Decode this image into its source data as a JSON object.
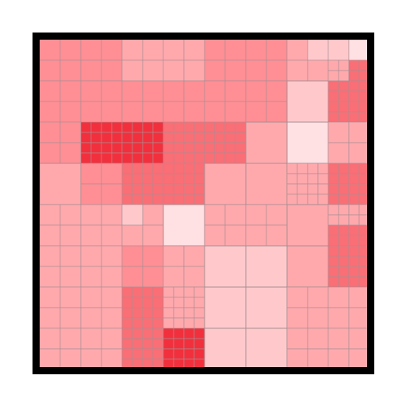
{
  "diagram": {
    "type": "quadtree-density-map",
    "max_depth": 5,
    "colors": {
      "frame": "#000000",
      "cell_border": "#a98e91",
      "shade_lightest": "#ffe0e3",
      "shade_light": "#ffc9cc",
      "shade_medium": "#ffa9ad",
      "shade_strong": "#ff8f95",
      "shade_darkest": "#f2303d"
    },
    "quadrant_order": [
      "top-left",
      "top-right",
      "bottom-left",
      "bottom-right"
    ],
    "tree": [
      [
        [
          [
            3,
            3,
            3,
            3
          ],
          [
            3,
            3,
            3,
            3
          ],
          [
            3,
            3,
            3,
            3
          ],
          [
            3,
            3,
            3,
            3
          ]
        ],
        [
          [
            2,
            2,
            2,
            2
          ],
          [
            2,
            2,
            2,
            2
          ],
          [
            3,
            3,
            3,
            3
          ],
          [
            3,
            3,
            3,
            3
          ]
        ],
        [
          [
            3,
            3,
            3,
            3
          ],
          [
            [
              4,
              4,
              4,
              4
            ],
            [
              4,
              4,
              4,
              4
            ],
            [
              4,
              4,
              4,
              4
            ],
            [
              4,
              4,
              4,
              4
            ]
          ],
          2,
          [
            3,
            3,
            3,
            3
          ]
        ],
        [
          [
            [
              4,
              4,
              4,
              4
            ],
            [
              4,
              4,
              4,
              4
            ],
            [
              4,
              4,
              4,
              4
            ],
            [
              4,
              4,
              4,
              4
            ]
          ],
          [
            [
              3,
              3,
              3,
              3
            ],
            [
              3,
              3,
              3,
              3
            ],
            [
              3,
              3,
              3,
              3
            ],
            [
              3,
              3,
              3,
              3
            ]
          ],
          [
            [
              3,
              3,
              3,
              3
            ],
            [
              3,
              3,
              3,
              3
            ],
            [
              3,
              3,
              3,
              3
            ],
            [
              3,
              3,
              3,
              3
            ]
          ],
          [
            [
              3,
              3,
              3,
              3
            ],
            [
              3,
              3,
              3,
              3
            ],
            [
              3,
              3,
              3,
              3
            ],
            [
              3,
              3,
              3,
              3
            ]
          ]
        ]
      ],
      [
        [
          [
            3,
            3,
            3,
            3
          ],
          [
            3,
            3,
            3,
            3
          ],
          [
            3,
            3,
            3,
            3
          ],
          [
            3,
            3,
            3,
            3
          ]
        ],
        [
          [
            2,
            1,
            2,
            2
          ],
          [
            1,
            0,
            [
              2,
              2,
              2,
              2
            ],
            [
              3,
              3,
              3,
              3
            ]
          ],
          1,
          [
            [
              3,
              3,
              3,
              3
            ],
            [
              3,
              3,
              3,
              3
            ],
            [
              3,
              3,
              3,
              3
            ],
            [
              3,
              3,
              3,
              3
            ]
          ]
        ],
        [
          [
            [
              3,
              3,
              3,
              3
            ],
            [
              3,
              3,
              3,
              3
            ],
            [
              3,
              3,
              3,
              3
            ],
            [
              3,
              3,
              3,
              3
            ]
          ],
          2,
          2,
          2
        ],
        [
          0,
          [
            2,
            2,
            2,
            2
          ],
          [
            [
              2,
              2,
              2,
              2
            ],
            [
              2,
              2,
              2,
              2
            ],
            [
              2,
              2,
              2,
              2
            ],
            [
              2,
              2,
              2,
              2
            ]
          ],
          [
            [
              3,
              3,
              3,
              3
            ],
            [
              3,
              3,
              3,
              3
            ],
            [
              3,
              3,
              3,
              3
            ],
            [
              3,
              3,
              3,
              3
            ]
          ]
        ]
      ],
      [
        [
          [
            2,
            2,
            2,
            2
          ],
          [
            2,
            2,
            2,
            2
          ],
          [
            2,
            2,
            2,
            2
          ],
          [
            2,
            2,
            2,
            2
          ]
        ],
        [
          [
            1,
            2,
            2,
            2
          ],
          0,
          [
            3,
            3,
            3,
            3
          ],
          [
            2,
            2,
            2,
            2
          ]
        ],
        [
          [
            2,
            2,
            2,
            2
          ],
          [
            2,
            2,
            2,
            2
          ],
          [
            2,
            2,
            2,
            2
          ],
          [
            2,
            2,
            2,
            2
          ]
        ],
        [
          [
            [
              3,
              3,
              3,
              3
            ],
            [
              3,
              3,
              3,
              3
            ],
            [
              3,
              3,
              3,
              3
            ],
            [
              3,
              3,
              3,
              3
            ]
          ],
          [
            [
              2,
              2,
              2,
              2
            ],
            [
              2,
              2,
              2,
              2
            ],
            [
              2,
              2,
              2,
              2
            ],
            [
              2,
              2,
              2,
              2
            ]
          ],
          [
            [
              3,
              3,
              3,
              3
            ],
            [
              3,
              3,
              3,
              3
            ],
            [
              3,
              3,
              3,
              3
            ],
            [
              3,
              3,
              3,
              3
            ]
          ],
          [
            [
              4,
              4,
              4,
              4
            ],
            [
              4,
              4,
              4,
              4
            ],
            [
              4,
              4,
              4,
              4
            ],
            [
              4,
              4,
              4,
              4
            ]
          ]
        ]
      ],
      [
        [
          [
            2,
            2,
            2,
            2
          ],
          [
            2,
            2,
            2,
            2
          ],
          1,
          1
        ],
        [
          2,
          [
            [
              2,
              2,
              2,
              2
            ],
            [
              2,
              2,
              2,
              2
            ],
            [
              3,
              3,
              3,
              3
            ],
            [
              3,
              3,
              3,
              3
            ]
          ],
          2,
          [
            [
              3,
              3,
              3,
              3
            ],
            [
              3,
              3,
              3,
              3
            ],
            [
              3,
              3,
              3,
              3
            ],
            [
              3,
              3,
              3,
              3
            ]
          ]
        ],
        [
          1,
          1,
          1,
          1
        ],
        [
          [
            2,
            2,
            2,
            2
          ],
          [
            2,
            2,
            2,
            2
          ],
          [
            2,
            2,
            2,
            2
          ],
          [
            2,
            2,
            2,
            2
          ]
        ]
      ]
    ]
  }
}
